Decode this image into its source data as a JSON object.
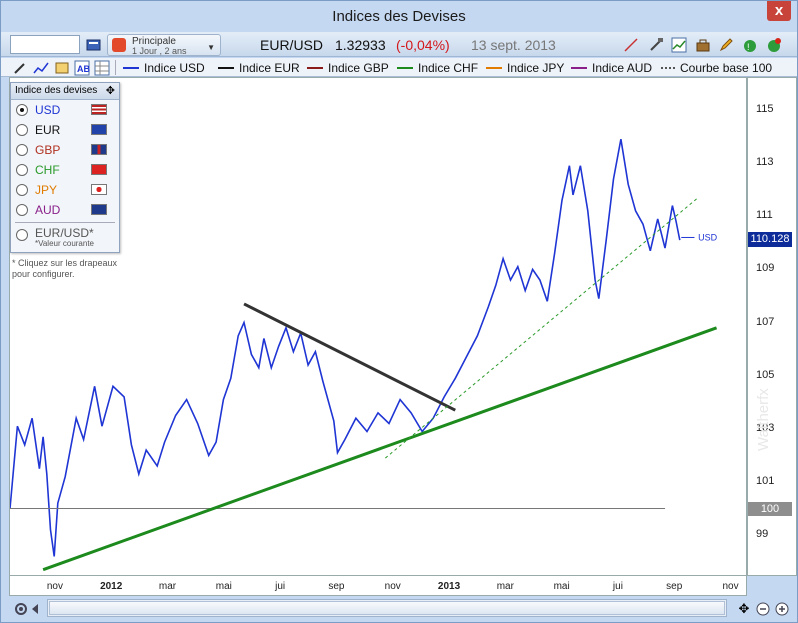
{
  "window": {
    "title": "Indices des Devises",
    "close_glyph": "x"
  },
  "toolbar": {
    "search_value": "",
    "preset_name": "Principale",
    "preset_detail": "1 Jour , 2 ans",
    "symbol": "EUR/USD",
    "price": "1.32933",
    "change": "(-0,04%)",
    "date": "13 sept. 2013"
  },
  "legend": [
    {
      "label": "Indice USD",
      "color": "#1f35d4"
    },
    {
      "label": "Indice EUR",
      "color": "#111111"
    },
    {
      "label": "Indice GBP",
      "color": "#8b1a1a"
    },
    {
      "label": "Indice CHF",
      "color": "#1c8a1c"
    },
    {
      "label": "Indice JPY",
      "color": "#e07b00"
    },
    {
      "label": "Indice AUD",
      "color": "#8a1f8a"
    }
  ],
  "base_curve_label": "Courbe base 100",
  "panel": {
    "title": "Indice des devises",
    "options": [
      {
        "label": "USD",
        "color": "#1f35d4",
        "selected": true
      },
      {
        "label": "EUR",
        "color": "#111111",
        "selected": false
      },
      {
        "label": "GBP",
        "color": "#b03020",
        "selected": false
      },
      {
        "label": "CHF",
        "color": "#2a9a2a",
        "selected": false
      },
      {
        "label": "JPY",
        "color": "#e07b00",
        "selected": false
      },
      {
        "label": "AUD",
        "color": "#8a1f8a",
        "selected": false
      }
    ],
    "eurusd_label": "EUR/USD*",
    "eurusd_sub": "*Valeur courante"
  },
  "note": "* Cliquez sur les drapeaux pour configurer.",
  "watermark": "Waltherfx",
  "chart_data": {
    "type": "line",
    "series": [
      {
        "name": "USD",
        "values_key": "usd"
      }
    ],
    "y_ticks": [
      "115",
      "113",
      "111",
      "109",
      "107",
      "105",
      "103",
      "101",
      "99"
    ],
    "ylim": [
      97.5,
      116.2
    ],
    "x_ticks": [
      "nov",
      "2012",
      "mar",
      "mai",
      "jui",
      "sep",
      "nov",
      "2013",
      "mar",
      "mai",
      "jui",
      "sep",
      "nov"
    ],
    "x_bold": [
      "2012",
      "2013"
    ],
    "last_value": "110.128",
    "series_label": "USD",
    "base_label": "100",
    "usd_points": [
      [
        0,
        100.0
      ],
      [
        0.01,
        103.1
      ],
      [
        0.02,
        102.4
      ],
      [
        0.03,
        103.4
      ],
      [
        0.04,
        101.5
      ],
      [
        0.045,
        102.7
      ],
      [
        0.05,
        101.3
      ],
      [
        0.055,
        99.2
      ],
      [
        0.06,
        98.2
      ],
      [
        0.065,
        100.2
      ],
      [
        0.075,
        101.2
      ],
      [
        0.09,
        103.4
      ],
      [
        0.1,
        102.6
      ],
      [
        0.115,
        104.6
      ],
      [
        0.125,
        103.1
      ],
      [
        0.14,
        104.6
      ],
      [
        0.155,
        104.2
      ],
      [
        0.165,
        102.4
      ],
      [
        0.175,
        101.3
      ],
      [
        0.185,
        102.2
      ],
      [
        0.2,
        101.6
      ],
      [
        0.21,
        102.5
      ],
      [
        0.225,
        103.5
      ],
      [
        0.24,
        104.1
      ],
      [
        0.255,
        103.2
      ],
      [
        0.27,
        102.0
      ],
      [
        0.28,
        102.5
      ],
      [
        0.29,
        104.1
      ],
      [
        0.3,
        104.9
      ],
      [
        0.31,
        106.5
      ],
      [
        0.318,
        107.0
      ],
      [
        0.328,
        105.8
      ],
      [
        0.338,
        105.3
      ],
      [
        0.345,
        106.4
      ],
      [
        0.355,
        105.3
      ],
      [
        0.365,
        106.1
      ],
      [
        0.375,
        106.8
      ],
      [
        0.385,
        105.9
      ],
      [
        0.395,
        106.6
      ],
      [
        0.405,
        105.4
      ],
      [
        0.415,
        105.9
      ],
      [
        0.425,
        104.8
      ],
      [
        0.44,
        103.3
      ],
      [
        0.445,
        102.1
      ],
      [
        0.455,
        102.6
      ],
      [
        0.47,
        103.4
      ],
      [
        0.485,
        102.9
      ],
      [
        0.5,
        103.6
      ],
      [
        0.515,
        103.2
      ],
      [
        0.53,
        104.1
      ],
      [
        0.545,
        103.6
      ],
      [
        0.56,
        102.9
      ],
      [
        0.575,
        103.4
      ],
      [
        0.59,
        104.2
      ],
      [
        0.605,
        104.9
      ],
      [
        0.62,
        105.7
      ],
      [
        0.635,
        106.5
      ],
      [
        0.65,
        107.6
      ],
      [
        0.66,
        108.4
      ],
      [
        0.67,
        109.4
      ],
      [
        0.68,
        108.6
      ],
      [
        0.69,
        109.1
      ],
      [
        0.7,
        108.2
      ],
      [
        0.71,
        109.0
      ],
      [
        0.72,
        108.6
      ],
      [
        0.73,
        107.8
      ],
      [
        0.74,
        109.6
      ],
      [
        0.75,
        111.6
      ],
      [
        0.76,
        112.9
      ],
      [
        0.765,
        111.8
      ],
      [
        0.775,
        112.9
      ],
      [
        0.785,
        111.2
      ],
      [
        0.795,
        108.6
      ],
      [
        0.8,
        107.9
      ],
      [
        0.81,
        110.1
      ],
      [
        0.82,
        112.4
      ],
      [
        0.83,
        113.9
      ],
      [
        0.84,
        112.2
      ],
      [
        0.85,
        111.2
      ],
      [
        0.86,
        110.7
      ],
      [
        0.87,
        109.7
      ],
      [
        0.88,
        110.9
      ],
      [
        0.89,
        109.8
      ],
      [
        0.9,
        111.4
      ],
      [
        0.905,
        110.8
      ],
      [
        0.91,
        110.1
      ]
    ]
  }
}
